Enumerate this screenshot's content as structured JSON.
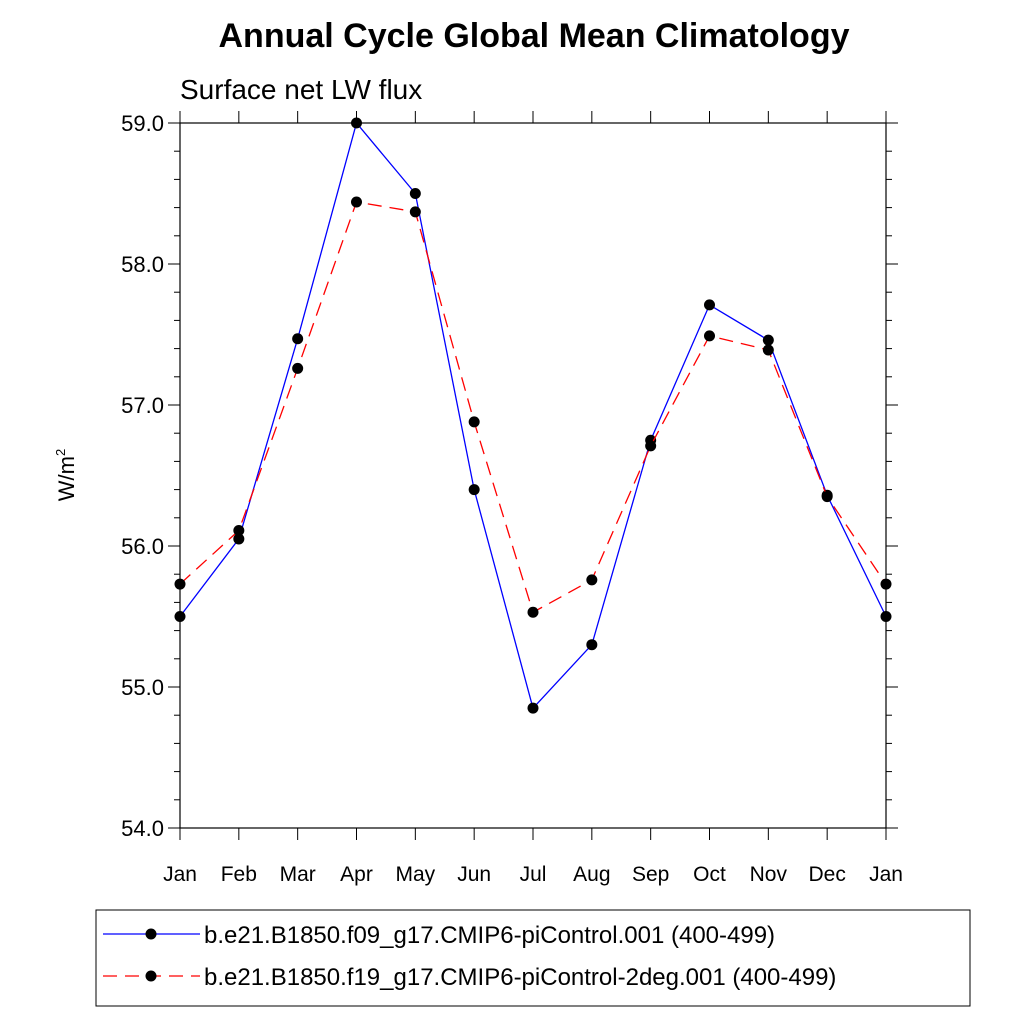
{
  "chart_data": {
    "type": "line",
    "title": "Annual Cycle Global Mean Climatology",
    "subtitle": "Surface net LW flux",
    "ylabel_base": "W/m",
    "ylabel_sup": "2",
    "xlabel": "",
    "categories": [
      "Jan",
      "Feb",
      "Mar",
      "Apr",
      "May",
      "Jun",
      "Jul",
      "Aug",
      "Sep",
      "Oct",
      "Nov",
      "Dec",
      "Jan"
    ],
    "ylim": [
      54.0,
      59.0
    ],
    "yticks": [
      "54.0",
      "55.0",
      "56.0",
      "57.0",
      "58.0",
      "59.0"
    ],
    "grid": false,
    "legend_position": "bottom",
    "series": [
      {
        "name": "b.e21.B1850.f09_g17.CMIP6-piControl.001 (400-499)",
        "color": "#0000ff",
        "line_style": "solid",
        "marker": "filled-circle",
        "values": [
          55.5,
          56.05,
          57.47,
          59.0,
          58.5,
          56.4,
          54.85,
          55.3,
          56.75,
          57.71,
          57.46,
          56.36,
          55.5
        ]
      },
      {
        "name": "b.e21.B1850.f19_g17.CMIP6-piControl-2deg.001 (400-499)",
        "color": "#ff0000",
        "line_style": "dashed",
        "marker": "filled-circle",
        "values": [
          55.73,
          56.11,
          57.26,
          58.44,
          58.37,
          56.88,
          55.53,
          55.76,
          56.71,
          57.49,
          57.39,
          56.35,
          55.73
        ]
      }
    ]
  }
}
